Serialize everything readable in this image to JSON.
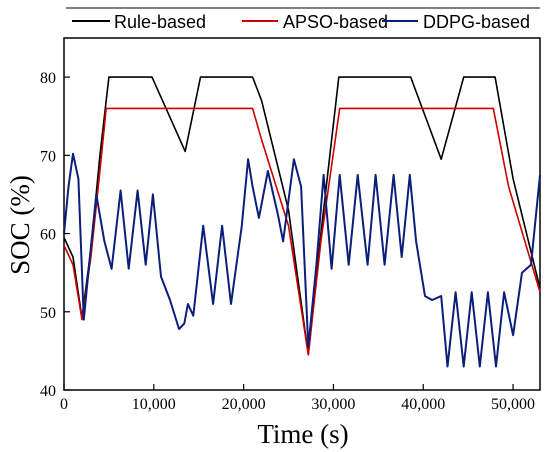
{
  "chart_data": {
    "type": "line",
    "title": "",
    "xlabel": "Time (s)",
    "ylabel": "SOC (%)",
    "xlim": [
      0,
      53000
    ],
    "ylim": [
      40,
      85
    ],
    "xticks": [
      0,
      10000,
      20000,
      30000,
      40000,
      50000
    ],
    "xtick_labels": [
      "0",
      "10,000",
      "20,000",
      "30,000",
      "40,000",
      "50,000"
    ],
    "yticks": [
      40,
      50,
      60,
      70,
      80
    ],
    "ytick_labels": [
      "40",
      "50",
      "60",
      "70",
      "80"
    ],
    "grid": false,
    "legend_position": "top",
    "series": [
      {
        "name": "Rule-based",
        "color": "#000000",
        "points": [
          [
            0,
            59.5
          ],
          [
            1000,
            57
          ],
          [
            2000,
            49.2
          ],
          [
            3000,
            58
          ],
          [
            4000,
            70
          ],
          [
            5000,
            80
          ],
          [
            9800,
            80
          ],
          [
            13500,
            70.5
          ],
          [
            15200,
            80
          ],
          [
            21000,
            80
          ],
          [
            22000,
            77
          ],
          [
            25000,
            63
          ],
          [
            27200,
            44.5
          ],
          [
            28600,
            60
          ],
          [
            30600,
            80
          ],
          [
            38600,
            80
          ],
          [
            42000,
            69.5
          ],
          [
            44500,
            80
          ],
          [
            48000,
            80
          ],
          [
            50000,
            67
          ],
          [
            53000,
            53
          ]
        ]
      },
      {
        "name": "APSO-based",
        "color": "#cc0000",
        "points": [
          [
            0,
            58.5
          ],
          [
            1000,
            56
          ],
          [
            2000,
            49
          ],
          [
            3000,
            57
          ],
          [
            4000,
            68
          ],
          [
            4700,
            76
          ],
          [
            21000,
            76
          ],
          [
            22000,
            72
          ],
          [
            25000,
            61
          ],
          [
            27200,
            44.5
          ],
          [
            28600,
            59
          ],
          [
            30700,
            76
          ],
          [
            47800,
            76
          ],
          [
            49500,
            66
          ],
          [
            53000,
            52.5
          ]
        ]
      },
      {
        "name": "DDPG-based",
        "color": "#0b1f7a",
        "points": [
          [
            0,
            60
          ],
          [
            500,
            66
          ],
          [
            1000,
            70.2
          ],
          [
            1600,
            67
          ],
          [
            2200,
            49
          ],
          [
            2800,
            56
          ],
          [
            3600,
            65
          ],
          [
            4500,
            59
          ],
          [
            5300,
            55.5
          ],
          [
            6300,
            65.5
          ],
          [
            7200,
            55.5
          ],
          [
            8200,
            65.5
          ],
          [
            9100,
            56
          ],
          [
            9900,
            65
          ],
          [
            10800,
            54.5
          ],
          [
            11800,
            51.5
          ],
          [
            12800,
            47.8
          ],
          [
            13400,
            48.5
          ],
          [
            13800,
            51
          ],
          [
            14400,
            49.5
          ],
          [
            15500,
            61
          ],
          [
            16600,
            51
          ],
          [
            17600,
            61
          ],
          [
            18600,
            51
          ],
          [
            19800,
            61
          ],
          [
            20500,
            69.5
          ],
          [
            21000,
            66
          ],
          [
            21700,
            62
          ],
          [
            22700,
            68
          ],
          [
            23800,
            62.5
          ],
          [
            24400,
            59
          ],
          [
            25600,
            69.5
          ],
          [
            26400,
            66
          ],
          [
            27200,
            45.5
          ],
          [
            28100,
            56
          ],
          [
            28900,
            67.5
          ],
          [
            29800,
            55.5
          ],
          [
            30700,
            67.5
          ],
          [
            31700,
            56
          ],
          [
            32700,
            67.5
          ],
          [
            33800,
            56
          ],
          [
            34700,
            67.5
          ],
          [
            35700,
            56
          ],
          [
            36700,
            67.5
          ],
          [
            37600,
            57
          ],
          [
            38500,
            67.5
          ],
          [
            39200,
            59
          ],
          [
            40200,
            52
          ],
          [
            41000,
            51.5
          ],
          [
            42000,
            52
          ],
          [
            42700,
            43
          ],
          [
            43600,
            52.5
          ],
          [
            44500,
            43
          ],
          [
            45400,
            52.5
          ],
          [
            46300,
            43
          ],
          [
            47200,
            52.5
          ],
          [
            48100,
            43
          ],
          [
            49000,
            52.5
          ],
          [
            50000,
            47
          ],
          [
            51000,
            55
          ],
          [
            52000,
            56
          ],
          [
            53000,
            67.5
          ]
        ]
      }
    ]
  }
}
